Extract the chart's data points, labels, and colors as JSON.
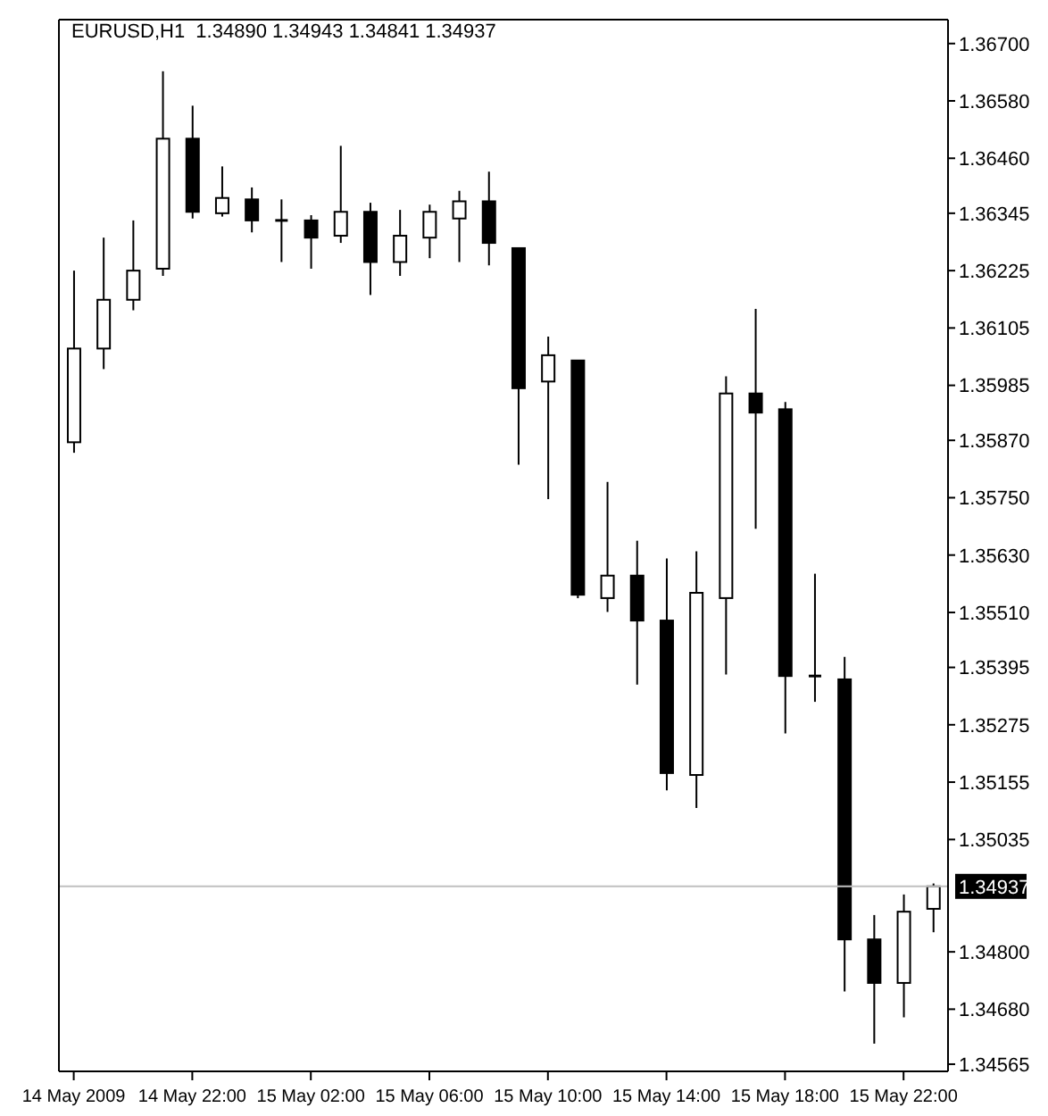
{
  "chart_data": {
    "type": "candlestick",
    "title": "EURUSD,H1  1.34890 1.34943 1.34841 1.34937",
    "categories": [
      "14 May 2009",
      null,
      null,
      null,
      "14 May 22:00",
      null,
      null,
      null,
      "15 May 02:00",
      null,
      null,
      null,
      "15 May 06:00",
      null,
      null,
      null,
      "15 May 10:00",
      null,
      null,
      null,
      "15 May 14:00",
      null,
      null,
      null,
      "15 May 18:00",
      null,
      null,
      null,
      "15 May 22:00",
      null
    ],
    "color": "#000000",
    "ohlc": [
      [
        1.35866,
        1.36225,
        1.35844,
        1.36062
      ],
      [
        1.36062,
        1.36294,
        1.36019,
        1.36164
      ],
      [
        1.36164,
        1.3633,
        1.36142,
        1.36225
      ],
      [
        1.36229,
        1.36642,
        1.36214,
        1.36501
      ],
      [
        1.36501,
        1.3657,
        1.36334,
        1.36348
      ],
      [
        1.36345,
        1.36443,
        1.36338,
        1.36377
      ],
      [
        1.36374,
        1.36399,
        1.36305,
        1.3633
      ],
      [
        1.3633,
        1.36374,
        1.36243,
        1.3633
      ],
      [
        1.3633,
        1.36341,
        1.36229,
        1.36294
      ],
      [
        1.36298,
        1.36486,
        1.36283,
        1.36348
      ],
      [
        1.36348,
        1.36367,
        1.36174,
        1.36243
      ],
      [
        1.36243,
        1.36352,
        1.36214,
        1.36298
      ],
      [
        1.36294,
        1.36363,
        1.36251,
        1.36348
      ],
      [
        1.36334,
        1.36392,
        1.36243,
        1.3637
      ],
      [
        1.3637,
        1.36432,
        1.36236,
        1.36283
      ],
      [
        1.36272,
        1.36272,
        1.35819,
        1.35979
      ],
      [
        1.35993,
        1.36087,
        1.35747,
        1.36048
      ],
      [
        1.36037,
        1.36037,
        1.3554,
        1.35547
      ],
      [
        1.3554,
        1.35783,
        1.35511,
        1.35587
      ],
      [
        1.35587,
        1.3566,
        1.35359,
        1.35493
      ],
      [
        1.35493,
        1.35623,
        1.35138,
        1.35174
      ],
      [
        1.3517,
        1.35638,
        1.35101,
        1.35551
      ],
      [
        1.3554,
        1.36004,
        1.3538,
        1.35968
      ],
      [
        1.35968,
        1.36145,
        1.35685,
        1.35928
      ],
      [
        1.35935,
        1.3595,
        1.35257,
        1.35377
      ],
      [
        1.35377,
        1.35591,
        1.35323,
        1.35377
      ],
      [
        1.3537,
        1.35417,
        1.34717,
        1.34826
      ],
      [
        1.34826,
        1.34877,
        1.34608,
        1.34735
      ],
      [
        1.34735,
        1.3492,
        1.34663,
        1.34884
      ],
      [
        1.3489,
        1.34943,
        1.34841,
        1.34937
      ]
    ],
    "ylim": [
      1.3455,
      1.3675
    ],
    "yticks": [
      {
        "value": 1.367,
        "label": "1.36700"
      },
      {
        "value": 1.3658,
        "label": "1.36580"
      },
      {
        "value": 1.3646,
        "label": "1.36460"
      },
      1.36345,
      1.36225,
      1.36105,
      1.35985,
      {
        "value": 1.3587,
        "label": "1.35870"
      },
      {
        "value": 1.3575,
        "label": "1.35750"
      },
      {
        "value": 1.3563,
        "label": "1.35630"
      },
      {
        "value": 1.3551,
        "label": "1.35510"
      },
      1.35395,
      1.35275,
      1.35155,
      1.35035,
      {
        "value": 1.348,
        "label": "1.34800"
      },
      {
        "value": 1.3468,
        "label": "1.34680"
      },
      1.34565
    ],
    "ref_lines": [
      {
        "axis": "y",
        "value": 1.34937,
        "label": "1.34937",
        "color": "#c0c0c0"
      }
    ]
  }
}
